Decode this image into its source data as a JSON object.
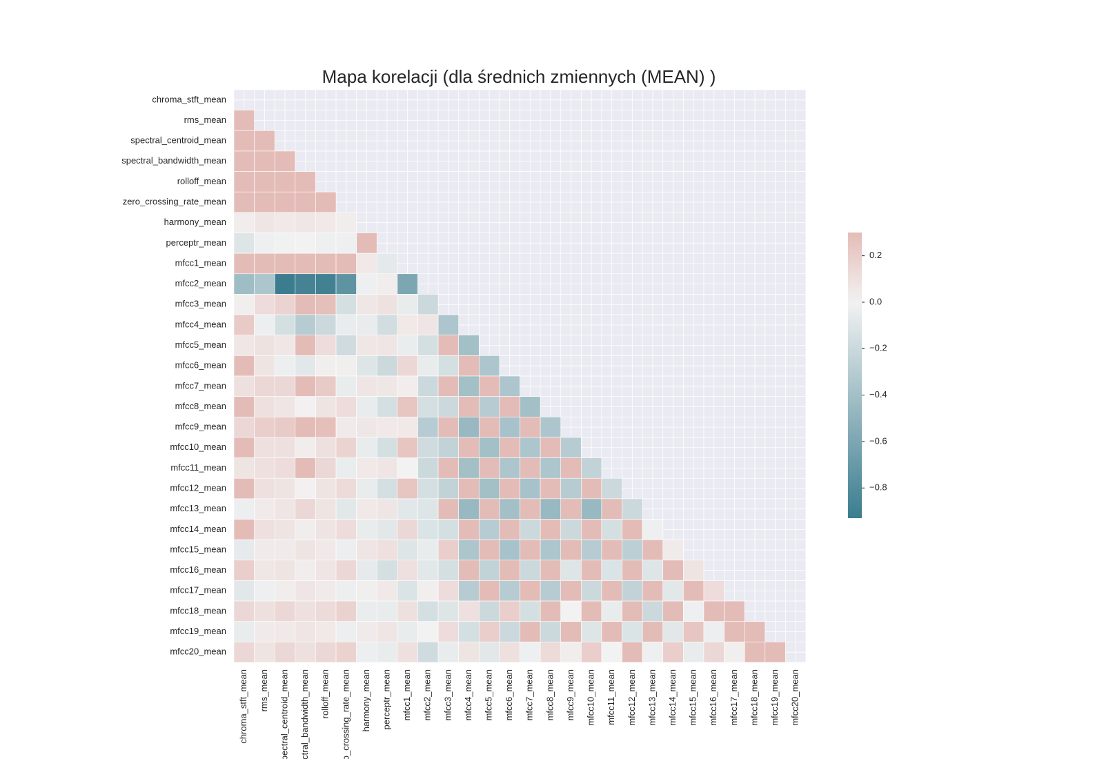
{
  "chart_data": {
    "type": "heatmap",
    "title": "Mapa korelacji (dla średnich zmiennych (MEAN) )",
    "categories": [
      "chroma_stft_mean",
      "rms_mean",
      "spectral_centroid_mean",
      "spectral_bandwidth_mean",
      "rolloff_mean",
      "zero_crossing_rate_mean",
      "harmony_mean",
      "perceptr_mean",
      "mfcc1_mean",
      "mfcc2_mean",
      "mfcc3_mean",
      "mfcc4_mean",
      "mfcc5_mean",
      "mfcc6_mean",
      "mfcc7_mean",
      "mfcc8_mean",
      "mfcc9_mean",
      "mfcc10_mean",
      "mfcc11_mean",
      "mfcc12_mean",
      "mfcc13_mean",
      "mfcc14_mean",
      "mfcc15_mean",
      "mfcc16_mean",
      "mfcc17_mean",
      "mfcc18_mean",
      "mfcc19_mean",
      "mfcc20_mean"
    ],
    "values": [
      [
        null,
        null,
        null,
        null,
        null,
        null,
        null,
        null,
        null,
        null,
        null,
        null,
        null,
        null,
        null,
        null,
        null,
        null,
        null,
        null,
        null,
        null,
        null,
        null,
        null,
        null,
        null,
        null
      ],
      [
        0.58,
        null,
        null,
        null,
        null,
        null,
        null,
        null,
        null,
        null,
        null,
        null,
        null,
        null,
        null,
        null,
        null,
        null,
        null,
        null,
        null,
        null,
        null,
        null,
        null,
        null,
        null,
        null
      ],
      [
        0.55,
        0.51,
        null,
        null,
        null,
        null,
        null,
        null,
        null,
        null,
        null,
        null,
        null,
        null,
        null,
        null,
        null,
        null,
        null,
        null,
        null,
        null,
        null,
        null,
        null,
        null,
        null,
        null
      ],
      [
        0.51,
        0.54,
        0.9,
        null,
        null,
        null,
        null,
        null,
        null,
        null,
        null,
        null,
        null,
        null,
        null,
        null,
        null,
        null,
        null,
        null,
        null,
        null,
        null,
        null,
        null,
        null,
        null,
        null
      ],
      [
        0.55,
        0.53,
        0.98,
        0.96,
        null,
        null,
        null,
        null,
        null,
        null,
        null,
        null,
        null,
        null,
        null,
        null,
        null,
        null,
        null,
        null,
        null,
        null,
        null,
        null,
        null,
        null,
        null,
        null
      ],
      [
        0.43,
        0.39,
        0.87,
        0.65,
        0.79,
        null,
        null,
        null,
        null,
        null,
        null,
        null,
        null,
        null,
        null,
        null,
        null,
        null,
        null,
        null,
        null,
        null,
        null,
        null,
        null,
        null,
        null,
        null
      ],
      [
        0.03,
        0.07,
        0.05,
        0.06,
        0.05,
        0.03,
        null,
        null,
        null,
        null,
        null,
        null,
        null,
        null,
        null,
        null,
        null,
        null,
        null,
        null,
        null,
        null,
        null,
        null,
        null,
        null,
        null,
        null
      ],
      [
        -0.1,
        -0.02,
        -0.01,
        0.0,
        -0.02,
        -0.02,
        0.35,
        null,
        null,
        null,
        null,
        null,
        null,
        null,
        null,
        null,
        null,
        null,
        null,
        null,
        null,
        null,
        null,
        null,
        null,
        null,
        null,
        null
      ],
      [
        0.5,
        0.8,
        0.85,
        0.8,
        0.85,
        0.7,
        0.05,
        -0.07,
        null,
        null,
        null,
        null,
        null,
        null,
        null,
        null,
        null,
        null,
        null,
        null,
        null,
        null,
        null,
        null,
        null,
        null,
        null,
        null
      ],
      [
        -0.42,
        -0.35,
        -0.93,
        -0.88,
        -0.9,
        -0.75,
        -0.02,
        0.03,
        -0.6,
        null,
        null,
        null,
        null,
        null,
        null,
        null,
        null,
        null,
        null,
        null,
        null,
        null,
        null,
        null,
        null,
        null,
        null,
        null
      ],
      [
        0.02,
        0.12,
        0.17,
        0.3,
        0.28,
        -0.15,
        0.06,
        0.09,
        -0.05,
        -0.2,
        null,
        null,
        null,
        null,
        null,
        null,
        null,
        null,
        null,
        null,
        null,
        null,
        null,
        null,
        null,
        null,
        null,
        null
      ],
      [
        0.22,
        -0.03,
        -0.15,
        -0.3,
        -0.2,
        -0.05,
        -0.05,
        -0.17,
        0.05,
        0.07,
        -0.35,
        null,
        null,
        null,
        null,
        null,
        null,
        null,
        null,
        null,
        null,
        null,
        null,
        null,
        null,
        null,
        null,
        null
      ],
      [
        0.06,
        0.09,
        0.06,
        0.32,
        0.12,
        -0.18,
        0.06,
        0.07,
        -0.04,
        -0.15,
        0.4,
        -0.4,
        null,
        null,
        null,
        null,
        null,
        null,
        null,
        null,
        null,
        null,
        null,
        null,
        null,
        null,
        null,
        null
      ],
      [
        0.35,
        0.08,
        -0.03,
        -0.08,
        0.02,
        0.02,
        -0.1,
        -0.2,
        0.15,
        -0.05,
        -0.15,
        0.35,
        -0.35,
        null,
        null,
        null,
        null,
        null,
        null,
        null,
        null,
        null,
        null,
        null,
        null,
        null,
        null,
        null
      ],
      [
        0.1,
        0.15,
        0.15,
        0.3,
        0.22,
        -0.05,
        0.07,
        0.06,
        0.03,
        -0.2,
        0.32,
        -0.4,
        0.55,
        -0.35,
        null,
        null,
        null,
        null,
        null,
        null,
        null,
        null,
        null,
        null,
        null,
        null,
        null,
        null
      ],
      [
        0.3,
        0.1,
        0.07,
        0.01,
        0.08,
        0.12,
        -0.05,
        -0.15,
        0.25,
        -0.15,
        -0.2,
        0.35,
        -0.3,
        0.45,
        -0.4,
        null,
        null,
        null,
        null,
        null,
        null,
        null,
        null,
        null,
        null,
        null,
        null,
        null
      ],
      [
        0.15,
        0.2,
        0.22,
        0.3,
        0.28,
        0.04,
        0.06,
        0.05,
        0.05,
        -0.3,
        0.35,
        -0.45,
        0.55,
        -0.38,
        0.5,
        -0.35,
        null,
        null,
        null,
        null,
        null,
        null,
        null,
        null,
        null,
        null,
        null,
        null
      ],
      [
        0.35,
        0.1,
        0.1,
        0.03,
        0.1,
        0.17,
        -0.05,
        -0.15,
        0.25,
        -0.18,
        -0.25,
        0.35,
        -0.4,
        0.5,
        -0.35,
        0.45,
        -0.3,
        null,
        null,
        null,
        null,
        null,
        null,
        null,
        null,
        null,
        null,
        null
      ],
      [
        0.08,
        0.1,
        0.12,
        0.3,
        0.15,
        -0.04,
        0.05,
        0.07,
        0.0,
        -0.2,
        0.35,
        -0.4,
        0.55,
        -0.35,
        0.55,
        -0.35,
        0.5,
        -0.25,
        null,
        null,
        null,
        null,
        null,
        null,
        null,
        null,
        null,
        null
      ],
      [
        0.3,
        0.1,
        0.08,
        0.01,
        0.08,
        0.13,
        -0.05,
        -0.15,
        0.25,
        -0.15,
        -0.25,
        0.35,
        -0.4,
        0.5,
        -0.38,
        0.45,
        -0.3,
        0.45,
        -0.2,
        null,
        null,
        null,
        null,
        null,
        null,
        null,
        null,
        null
      ],
      [
        -0.03,
        0.04,
        0.07,
        0.15,
        0.08,
        -0.08,
        0.05,
        0.07,
        -0.08,
        -0.1,
        0.3,
        -0.45,
        0.4,
        -0.4,
        0.4,
        -0.45,
        0.4,
        -0.45,
        0.3,
        -0.2,
        null,
        null,
        null,
        null,
        null,
        null,
        null,
        null
      ],
      [
        0.3,
        0.1,
        0.08,
        0.03,
        0.08,
        0.12,
        -0.05,
        -0.08,
        0.15,
        -0.12,
        -0.15,
        0.35,
        -0.3,
        0.45,
        -0.2,
        0.4,
        -0.2,
        0.4,
        -0.15,
        0.4,
        -0.02,
        null,
        null,
        null,
        null,
        null,
        null,
        null
      ],
      [
        -0.06,
        0.04,
        0.04,
        0.08,
        0.05,
        -0.03,
        0.07,
        0.1,
        -0.1,
        -0.05,
        0.2,
        -0.35,
        0.35,
        -0.38,
        0.4,
        -0.35,
        0.4,
        -0.3,
        0.35,
        -0.28,
        0.3,
        0.04,
        null,
        null,
        null,
        null,
        null,
        null
      ],
      [
        0.2,
        0.06,
        0.08,
        0.03,
        0.07,
        0.15,
        -0.06,
        -0.15,
        0.1,
        -0.08,
        -0.15,
        0.35,
        -0.25,
        0.4,
        -0.2,
        0.4,
        -0.1,
        0.4,
        -0.12,
        0.4,
        -0.1,
        0.35,
        0.08,
        null,
        null,
        null,
        null,
        null
      ],
      [
        -0.08,
        -0.02,
        0.03,
        0.07,
        0.04,
        -0.03,
        0.02,
        0.05,
        -0.12,
        0.02,
        0.12,
        -0.3,
        0.35,
        -0.3,
        0.35,
        -0.3,
        0.35,
        -0.2,
        0.35,
        -0.25,
        0.35,
        -0.08,
        0.3,
        0.12,
        null,
        null,
        null,
        null
      ],
      [
        0.15,
        0.1,
        0.15,
        0.1,
        0.13,
        0.18,
        -0.04,
        -0.05,
        0.1,
        -0.15,
        -0.1,
        0.1,
        -0.2,
        0.2,
        -0.15,
        0.35,
        0.0,
        0.3,
        -0.05,
        0.35,
        -0.2,
        0.3,
        -0.02,
        0.35,
        0.35,
        null,
        null,
        null
      ],
      [
        -0.05,
        0.04,
        0.05,
        0.07,
        0.05,
        -0.03,
        0.04,
        0.07,
        -0.05,
        0.0,
        0.12,
        -0.15,
        0.2,
        -0.2,
        0.3,
        -0.2,
        0.35,
        -0.1,
        0.35,
        -0.12,
        0.35,
        -0.08,
        0.25,
        -0.03,
        0.35,
        0.35,
        null,
        null
      ],
      [
        0.15,
        0.08,
        0.15,
        0.1,
        0.15,
        0.18,
        -0.03,
        -0.05,
        0.1,
        -0.18,
        -0.05,
        0.08,
        -0.08,
        0.1,
        -0.02,
        0.13,
        0.03,
        0.2,
        0.0,
        0.35,
        -0.02,
        0.2,
        -0.05,
        0.15,
        0.02,
        0.35,
        0.35,
        null
      ]
    ],
    "colormap": {
      "negative": "#3b7d8f",
      "center": "#f2f2f2",
      "positive": "#c84b3c"
    },
    "center": 0,
    "clim": [
      -0.93,
      0.3
    ],
    "cticks": [
      {
        "value": -0.8,
        "label": "−0.8"
      },
      {
        "value": -0.6,
        "label": "−0.6"
      },
      {
        "value": -0.4,
        "label": "−0.4"
      },
      {
        "value": -0.2,
        "label": "−0.2"
      },
      {
        "value": 0,
        "label": "0.0"
      },
      0.2
    ]
  }
}
